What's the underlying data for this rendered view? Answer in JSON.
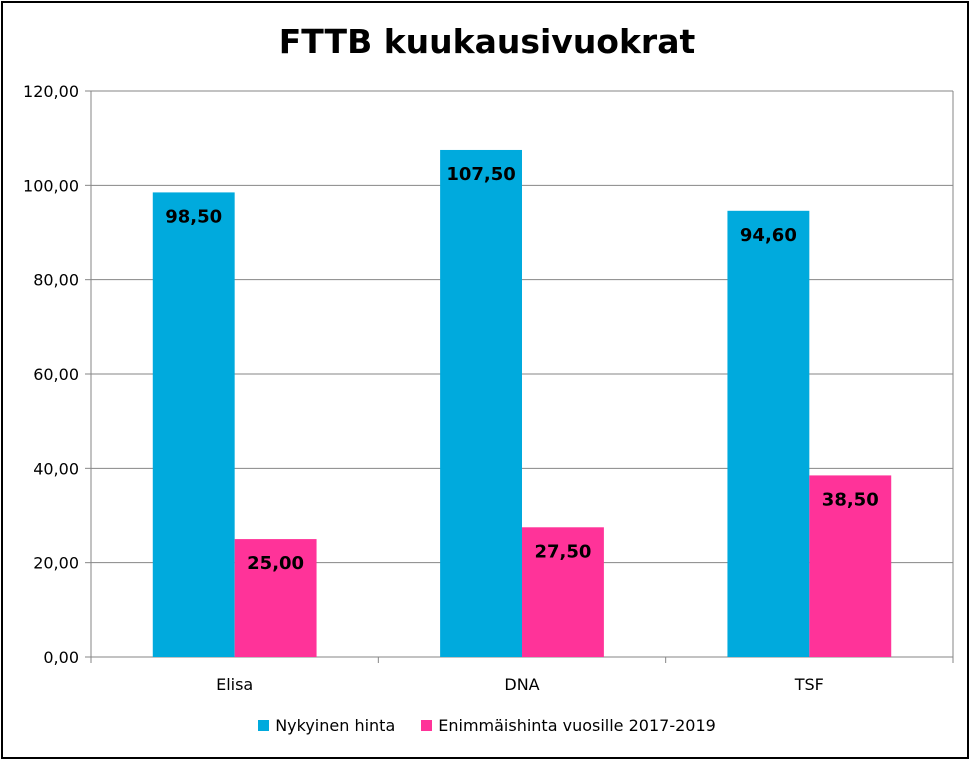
{
  "chart_data": {
    "type": "bar",
    "title": "FTTB kuukausivuokrat",
    "categories": [
      "Elisa",
      "DNA",
      "TSF"
    ],
    "series": [
      {
        "name": "Nykyinen hinta",
        "values": [
          98.5,
          107.5,
          94.6
        ],
        "labels": [
          "98,50",
          "107,50",
          "94,60"
        ],
        "color": "#00AADD"
      },
      {
        "name": "Enimmäishinta vuosille 2017-2019",
        "values": [
          25.0,
          27.5,
          38.5
        ],
        "labels": [
          "25,00",
          "27,50",
          "38,50"
        ],
        "color": "#FF3399"
      }
    ],
    "ylim": [
      0,
      120
    ],
    "y_ticks": [
      0,
      20,
      40,
      60,
      80,
      100,
      120
    ],
    "y_tick_labels": [
      "0,00",
      "20,00",
      "40,00",
      "60,00",
      "80,00",
      "100,00",
      "120,00"
    ],
    "xlabel": "",
    "ylabel": "",
    "grid": true,
    "legend_position": "bottom"
  }
}
